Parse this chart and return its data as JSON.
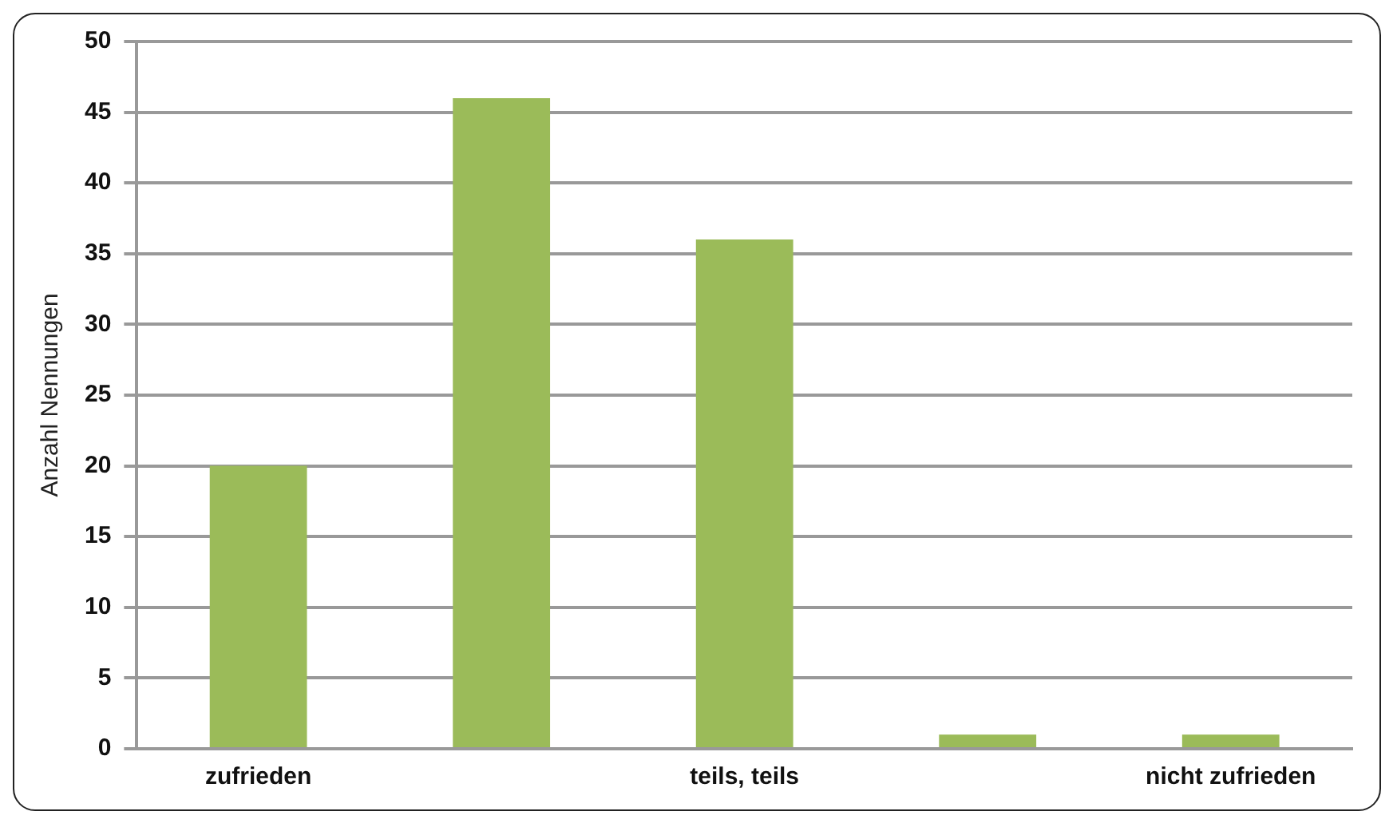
{
  "chart_data": {
    "type": "bar",
    "ylabel": "Anzahl Nennungen",
    "categories": [
      "zufrieden",
      null,
      "teils, teils",
      null,
      "nicht zufrieden"
    ],
    "values": [
      20,
      46,
      36,
      1,
      1
    ],
    "color": "#9bbb59",
    "ylim": [
      0,
      50
    ],
    "yticks": [
      0,
      5,
      10,
      15,
      20,
      25,
      30,
      35,
      40,
      45,
      50
    ],
    "grid": "y"
  }
}
